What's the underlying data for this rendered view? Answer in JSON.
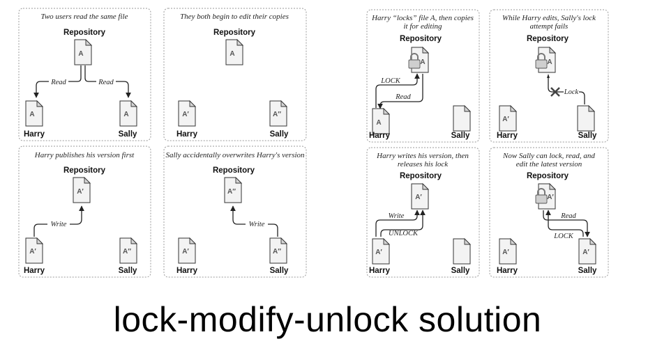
{
  "title": "lock-modify-unlock solution",
  "labels": {
    "repository": "Repository",
    "harry": "Harry",
    "sally": "Sally"
  },
  "files": {
    "a": "A",
    "a1": "A′",
    "a2": "A″"
  },
  "arrows": {
    "read": "Read",
    "write": "Write",
    "lock": "LOCK",
    "unlock": "UNLOCK",
    "lock_italic": "Lock"
  },
  "captions": {
    "p1": "Two users read the same file",
    "p2": "They both begin to edit their copies",
    "p3": "Harry publishes his version first",
    "p4": "Sally accidentally overwrites Harry's version",
    "q1_line1": "Harry “locks” file A, then copies",
    "q1_line2": "it for editing",
    "q2_line1": "While Harry edits, Sally's lock",
    "q2_line2": "attempt fails",
    "q3_line1": "Harry writes his version, then",
    "q3_line2": "releases his lock",
    "q4_line1": "Now Sally can lock, read, and",
    "q4_line2": "edit the latest version"
  }
}
